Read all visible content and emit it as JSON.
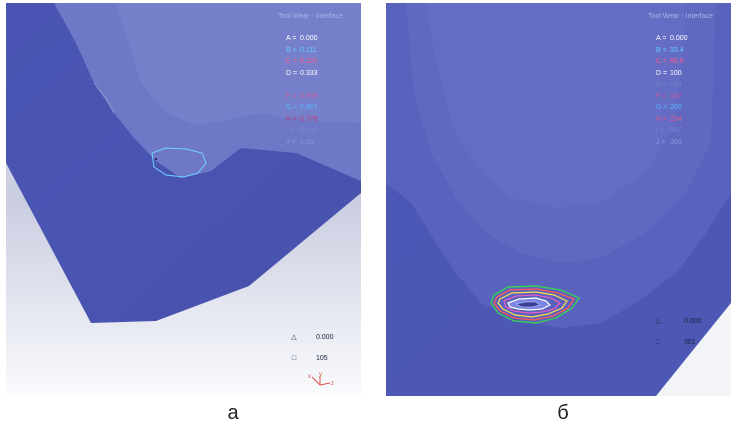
{
  "panel_a": {
    "title": "Tool Wear - Interface",
    "legend": [
      {
        "key": "A =",
        "value": "0.000",
        "color": "#ffffff"
      },
      {
        "key": "B =",
        "value": "0.111",
        "color": "#5fd0ff"
      },
      {
        "key": "C =",
        "value": "0.222",
        "color": "#ff5a8a"
      },
      {
        "key": "D =",
        "value": "0.333",
        "color": "#ffffff"
      },
      {
        "key": "E =",
        "value": "0.444",
        "color": "#7a82c8"
      },
      {
        "key": "F =",
        "value": "0.555",
        "color": "#d05a9c"
      },
      {
        "key": "G =",
        "value": "0.667",
        "color": "#58b6ff"
      },
      {
        "key": "H =",
        "value": "0.778",
        "color": "#c03a7a"
      },
      {
        "key": "I =",
        "value": "0.889",
        "color": "#7d86d4"
      },
      {
        "key": "J =",
        "value": "1.00",
        "color": "#8d96dc"
      }
    ],
    "info_triangle": "0.000",
    "info_square": "105",
    "axis_x": "x",
    "axis_y": "y",
    "axis_z": "z",
    "caption": "а"
  },
  "panel_b": {
    "title": "Tool Wear - Interface",
    "legend": [
      {
        "key": "A =",
        "value": "0.000",
        "color": "#ffffff"
      },
      {
        "key": "B =",
        "value": "33.4",
        "color": "#5fd0ff"
      },
      {
        "key": "C =",
        "value": "66.8",
        "color": "#ff5a8a"
      },
      {
        "key": "D =",
        "value": "100",
        "color": "#ffffff"
      },
      {
        "key": "E =",
        "value": "134",
        "color": "#7a82c8"
      },
      {
        "key": "F =",
        "value": "167",
        "color": "#d05a9c"
      },
      {
        "key": "G =",
        "value": "200",
        "color": "#58b6ff"
      },
      {
        "key": "H =",
        "value": "234",
        "color": "#e0588a"
      },
      {
        "key": "I =",
        "value": "267",
        "color": "#7d86d4"
      },
      {
        "key": "J =",
        "value": "300",
        "color": "#8d96dc"
      }
    ],
    "info_triangle": "0.000",
    "info_square": "301",
    "caption": "б"
  }
}
